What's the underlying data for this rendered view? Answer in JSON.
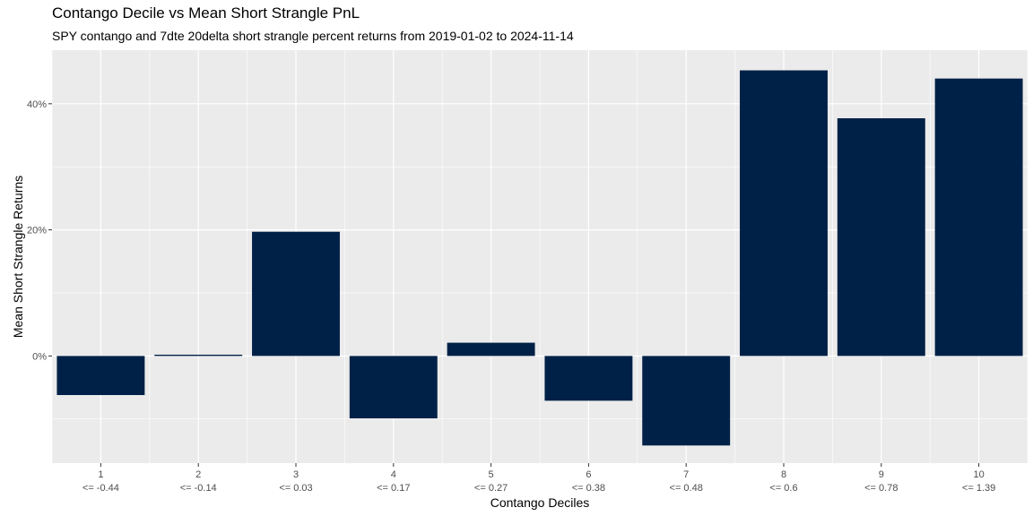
{
  "chart_data": {
    "type": "bar",
    "title": "Contango Decile vs Mean Short Strangle PnL",
    "subtitle": "SPY contango and 7dte 20delta short strangle percent returns from 2019-01-02 to 2024-11-14",
    "xlabel": "Contango Deciles",
    "ylabel": "Mean Short Strangle Returns",
    "categories": [
      "1",
      "2",
      "3",
      "4",
      "5",
      "6",
      "7",
      "8",
      "9",
      "10"
    ],
    "category_sublabels": [
      "<= -0.44",
      "<= -0.14",
      "<= 0.03",
      "<= 0.17",
      "<= 0.27",
      "<= 0.38",
      "<= 0.48",
      "<= 0.6",
      "<= 0.78",
      "<= 1.39"
    ],
    "values": [
      -6.2,
      0.2,
      19.7,
      -9.9,
      2.1,
      -7.1,
      -14.2,
      45.3,
      37.7,
      44.0
    ],
    "yunit": "%",
    "ylim": [
      -17,
      48.5
    ],
    "yticks": [
      0,
      20,
      40
    ],
    "ytick_labels": [
      "0%",
      "20%",
      "40%"
    ],
    "bar_color": "#002147",
    "panel_background": "#ebebeb",
    "grid": true
  }
}
